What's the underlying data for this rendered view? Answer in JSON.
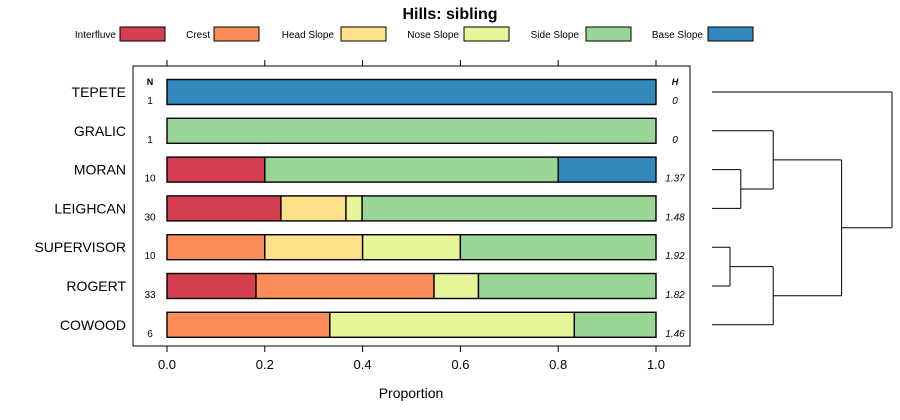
{
  "chart_data": {
    "type": "bar",
    "orientation": "horizontal-stacked-proportion",
    "title": "Hills: sibling",
    "xlabel": "Proportion",
    "ylabel": "",
    "xlim": [
      0,
      1
    ],
    "x_ticks": [
      0.0,
      0.2,
      0.4,
      0.6,
      0.8,
      1.0
    ],
    "x_tick_labels": [
      "0.0",
      "0.2",
      "0.4",
      "0.6",
      "0.8",
      "1.0"
    ],
    "legend_position": "top",
    "n_header": "N",
    "h_header": "H",
    "series": [
      {
        "name": "Interfluve",
        "color": "#d53e4f"
      },
      {
        "name": "Crest",
        "color": "#fc8d59"
      },
      {
        "name": "Head Slope",
        "color": "#fee08b"
      },
      {
        "name": "Nose Slope",
        "color": "#e6f598"
      },
      {
        "name": "Side Slope",
        "color": "#99d594"
      },
      {
        "name": "Base Slope",
        "color": "#3288bd"
      }
    ],
    "categories": [
      "TEPETE",
      "GRALIC",
      "MORAN",
      "LEIGHCAN",
      "SUPERVISOR",
      "ROGERT",
      "COWOOD"
    ],
    "rows": [
      {
        "name": "TEPETE",
        "n": "1",
        "h": "0",
        "values": [
          0,
          0,
          0,
          0,
          0,
          1.0
        ]
      },
      {
        "name": "GRALIC",
        "n": "1",
        "h": "0",
        "values": [
          0,
          0,
          0,
          0,
          1.0,
          0
        ]
      },
      {
        "name": "MORAN",
        "n": "10",
        "h": "1.37",
        "values": [
          0.2,
          0,
          0,
          0,
          0.6,
          0.2
        ]
      },
      {
        "name": "LEIGHCAN",
        "n": "30",
        "h": "1.48",
        "values": [
          0.233,
          0,
          0.133,
          0.033,
          0.601,
          0
        ]
      },
      {
        "name": "SUPERVISOR",
        "n": "10",
        "h": "1.92",
        "values": [
          0,
          0.2,
          0.2,
          0.2,
          0.4,
          0
        ]
      },
      {
        "name": "ROGERT",
        "n": "33",
        "h": "1.82",
        "values": [
          0.182,
          0.364,
          0,
          0.091,
          0.363,
          0
        ]
      },
      {
        "name": "COWOOD",
        "n": "6",
        "h": "1.46",
        "values": [
          0,
          0.333,
          0,
          0.5,
          0.167,
          0
        ]
      }
    ],
    "dendrogram": {
      "merges": [
        {
          "a": "MORAN",
          "b": "LEIGHCAN",
          "height": 0.08
        },
        {
          "a": "SUPERVISOR",
          "b": "ROGERT",
          "height": 0.05
        },
        {
          "a": "GRALIC",
          "b": "MORAN+LEIGHCAN",
          "height": 0.17
        },
        {
          "a": "SUPERVISOR+ROGERT",
          "b": "COWOOD",
          "height": 0.17
        },
        {
          "a": "GRALIC+MORAN+LEIGHCAN",
          "b": "SUPERVISOR+ROGERT+COWOOD",
          "height": 0.36
        },
        {
          "a": "TEPETE",
          "b": "rest",
          "height": 0.5
        }
      ]
    }
  }
}
